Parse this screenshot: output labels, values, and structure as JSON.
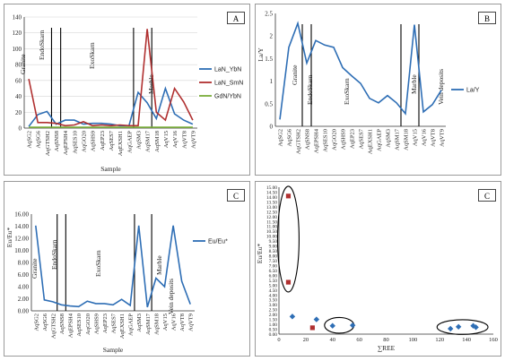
{
  "samples": [
    "AqSG2",
    "AqSG6",
    "AqGTSH2",
    "AqSNS8",
    "AqEPSH4",
    "AqSES10",
    "AqGO20",
    "AqSHS9",
    "AqEP23",
    "AqSES7",
    "AqEXSH1",
    "AqGAEP",
    "AqSM3",
    "AqSM17",
    "AqSM18",
    "AqV15",
    "AqV16",
    "AqVT8",
    "AqVT9"
  ],
  "chart_data": [
    {
      "panel_label": "A",
      "type": "line",
      "xlabel": "Sample",
      "ylim": [
        0,
        140
      ],
      "yticks": [
        "0",
        "20",
        "40",
        "60",
        "80",
        "100",
        "120",
        "140"
      ],
      "rock_zones": [
        "Granite",
        "EndoSkarn",
        "ExoSkarn",
        "Marble"
      ],
      "series": [
        {
          "name": "LaN_YbN",
          "color": "#2e6eb5",
          "values": [
            2,
            17,
            21,
            5,
            10,
            10,
            5,
            6,
            6,
            5,
            3,
            3,
            45,
            32,
            12,
            50,
            18,
            10,
            5
          ]
        },
        {
          "name": "LaN_SmN",
          "color": "#b03030",
          "values": [
            62,
            7,
            7,
            6,
            3,
            4,
            8,
            3,
            4,
            3,
            4,
            3,
            3,
            125,
            20,
            10,
            50,
            33,
            10
          ]
        },
        {
          "name": "GdN/YbN",
          "color": "#7aad3a",
          "values": [
            1,
            1,
            1,
            1,
            1,
            1,
            1,
            1,
            1,
            1,
            1,
            1,
            1,
            1,
            1,
            1,
            1,
            1,
            1
          ]
        }
      ]
    },
    {
      "panel_label": "B",
      "type": "line",
      "ylabel": "La/Y",
      "ylim": [
        0,
        2.5
      ],
      "yticks": [
        "0",
        "0.5",
        "1",
        "1.5",
        "2",
        "2.5"
      ],
      "rock_zones": [
        "Granite",
        "EndoSkarn",
        "ExoSkarn",
        "Marble",
        "Vein deposits"
      ],
      "series": [
        {
          "name": "La/Y",
          "color": "#2e6eb5",
          "values": [
            0.15,
            1.75,
            2.28,
            1.4,
            1.9,
            1.8,
            1.75,
            1.3,
            1.12,
            0.95,
            0.62,
            0.52,
            0.68,
            0.52,
            0.28,
            2.25,
            0.32,
            0.48,
            0.8
          ]
        }
      ]
    },
    {
      "panel_label": "C",
      "type": "line",
      "xlabel": "Sample",
      "ylabel": "Eu/Eu*",
      "ylim": [
        0,
        16
      ],
      "yticks": [
        "0.00",
        "2.00",
        "4.00",
        "6.00",
        "8.00",
        "10.00",
        "12.00",
        "14.00",
        "16.00"
      ],
      "rock_zones": [
        "Granite",
        "EndoSkarn",
        "ExoSkarn",
        "Marble",
        "Vein deposits"
      ],
      "series": [
        {
          "name": "Eu/Eu*",
          "color": "#2e6eb5",
          "values": [
            14.1,
            1.8,
            1.5,
            1.0,
            0.8,
            0.7,
            1.6,
            1.2,
            1.2,
            1.0,
            1.9,
            0.9,
            14.1,
            0.6,
            5.4,
            4.0,
            14.1,
            4.9,
            1.1
          ]
        }
      ]
    },
    {
      "panel_label": "C",
      "type": "scatter",
      "xlabel": "∑REE",
      "ylabel": "Eu/Eu*",
      "xlim": [
        0,
        160
      ],
      "ylim": [
        0,
        15
      ],
      "xticks": [
        "0",
        "20",
        "40",
        "60",
        "80",
        "100",
        "120",
        "140",
        "160"
      ],
      "yticks": [
        "0.00",
        "0.50",
        "1.00",
        "1.50",
        "2.00",
        "2.50",
        "3.00",
        "3.50",
        "4.00",
        "4.50",
        "5.00",
        "5.50",
        "6.00",
        "6.50",
        "7.00",
        "7.50",
        "8.00",
        "8.50",
        "9.00",
        "9.50",
        "10.00",
        "10.50",
        "11.00",
        "11.50",
        "12.00",
        "12.50",
        "13.00",
        "13.50",
        "14.00",
        "14.50",
        "15.00"
      ],
      "points": [
        {
          "x": 7,
          "y": 14.1,
          "color": "#b03030",
          "shape": "square"
        },
        {
          "x": 7,
          "y": 5.3,
          "color": "#b03030",
          "shape": "square"
        },
        {
          "x": 25,
          "y": 0.65,
          "color": "#b03030",
          "shape": "square"
        },
        {
          "x": 10,
          "y": 1.8,
          "color": "#2e6eb5",
          "shape": "diamond"
        },
        {
          "x": 28,
          "y": 1.5,
          "color": "#2e6eb5",
          "shape": "diamond"
        },
        {
          "x": 40,
          "y": 0.85,
          "color": "#2e6eb5",
          "shape": "diamond"
        },
        {
          "x": 55,
          "y": 0.9,
          "color": "#2e6eb5",
          "shape": "diamond"
        },
        {
          "x": 128,
          "y": 0.55,
          "color": "#2e6eb5",
          "shape": "diamond"
        },
        {
          "x": 134,
          "y": 0.75,
          "color": "#2e6eb5",
          "shape": "diamond"
        },
        {
          "x": 145,
          "y": 0.85,
          "color": "#2e6eb5",
          "shape": "diamond"
        },
        {
          "x": 147,
          "y": 0.7,
          "color": "#2e6eb5",
          "shape": "diamond"
        }
      ]
    }
  ]
}
